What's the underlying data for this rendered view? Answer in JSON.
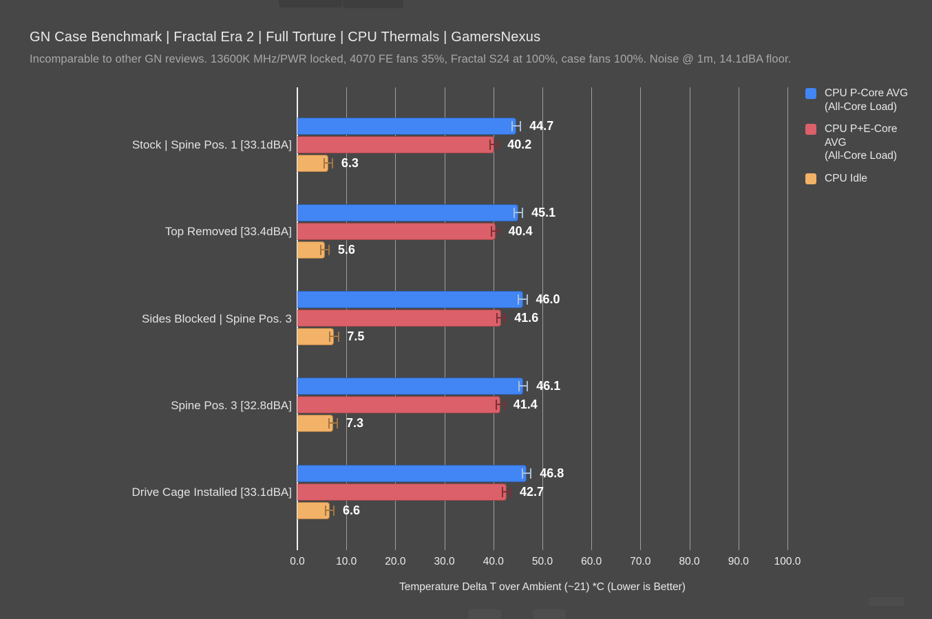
{
  "header": {
    "title": "GN Case Benchmark | Fractal Era 2 | Full Torture | CPU Thermals | GamersNexus",
    "subtitle": "Incomparable to other GN reviews. 13600K MHz/PWR locked, 4070 FE fans 35%, Fractal S24 at 100%, case fans 100%. Noise @ 1m, 14.1dBA floor."
  },
  "chart_data": {
    "type": "bar",
    "orientation": "horizontal",
    "title": "GN Case Benchmark | Fractal Era 2 | Full Torture | CPU Thermals | GamersNexus",
    "subtitle": "Incomparable to other GN reviews. 13600K MHz/PWR locked, 4070 FE fans 35%, Fractal S24 at 100%, case fans 100%. Noise @ 1m, 14.1dBA floor.",
    "categories": [
      "Stock | Spine Pos. 1 [33.1dBA]",
      "Top Removed [33.4dBA]",
      "Sides Blocked | Spine Pos. 3",
      "Spine Pos. 3 [32.8dBA]",
      "Drive Cage Installed [33.1dBA]"
    ],
    "series": [
      {
        "name": "CPU P-Core AVG (All-Core Load)",
        "label_lines": [
          "CPU P-Core AVG",
          "(All-Core Load)"
        ],
        "color": "#4285f4",
        "error_color": "#a9c0d6",
        "values": [
          44.7,
          45.1,
          46.0,
          46.1,
          46.8
        ]
      },
      {
        "name": "CPU P+E-Core AVG (All-Core Load)",
        "label_lines": [
          "CPU P+E-Core",
          "AVG",
          "(All-Core Load)"
        ],
        "color": "#db6069",
        "error_color": "#7e2f34",
        "values": [
          40.2,
          40.4,
          41.6,
          41.4,
          42.7
        ]
      },
      {
        "name": "CPU Idle",
        "label_lines": [
          "CPU Idle"
        ],
        "color": "#f2b267",
        "error_color": "#a3763f",
        "values": [
          6.3,
          5.6,
          7.5,
          7.3,
          6.6
        ]
      }
    ],
    "xlabel": "Temperature Delta T over Ambient (~21) *C (Lower is Better)",
    "xlim": [
      0,
      100
    ],
    "xticks": [
      "0.0",
      "10.0",
      "20.0",
      "30.0",
      "40.0",
      "50.0",
      "60.0",
      "70.0",
      "80.0",
      "90.0",
      "100.0"
    ],
    "error_halfwidth": 1.0,
    "grid": true,
    "legend_position": "right"
  },
  "colors": {
    "background": "#474747",
    "gridline": "#9f9f9f",
    "zero_line": "#f5f5f5",
    "title": "#eaeaea",
    "subtitle": "#a8a8a8",
    "category_label": "#e2e2e2",
    "value_label": "#ffffff",
    "bar_blue": "#4285f4",
    "bar_red": "#db6069",
    "bar_orange": "#f2b267"
  }
}
